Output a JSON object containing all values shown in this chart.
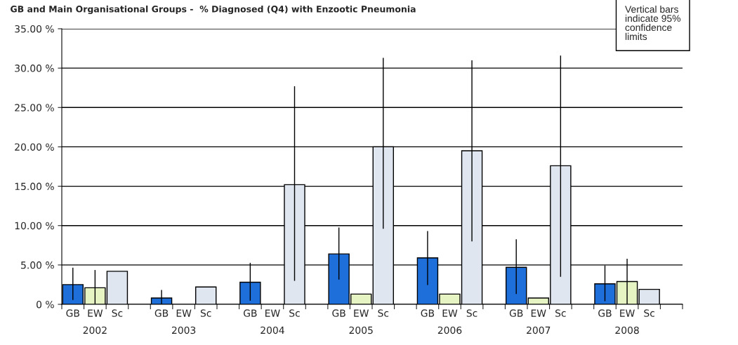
{
  "chart_data": {
    "type": "bar",
    "title": "GB and Main Organisational Groups -  % Diagnosed (Q4) with Enzootic Pneumonia",
    "categories": [
      "2002",
      "2003",
      "2004",
      "2005",
      "2006",
      "2007",
      "2008"
    ],
    "series": [
      {
        "name": "GB",
        "color": "#1e6fd9",
        "values": [
          2.5,
          0.8,
          2.8,
          6.4,
          5.9,
          4.7,
          2.6
        ],
        "errors": [
          [
            0.55,
            4.66
          ],
          [
            0,
            1.83
          ],
          [
            0.46,
            5.27
          ],
          [
            3.14,
            9.76
          ],
          [
            2.44,
            9.3
          ],
          [
            1.31,
            8.26
          ],
          [
            0.4,
            4.94
          ]
        ]
      },
      {
        "name": "EW",
        "color": "#e6f4c4",
        "values": [
          2.1,
          null,
          null,
          1.3,
          1.3,
          0.8,
          2.9
        ],
        "errors": [
          [
            0,
            4.36
          ],
          null,
          null,
          null,
          null,
          null,
          [
            0,
            5.79
          ]
        ]
      },
      {
        "name": "Sc",
        "color": "#dfe6ef",
        "values": [
          4.2,
          2.2,
          15.2,
          20.0,
          19.5,
          17.6,
          1.9
        ],
        "errors": [
          null,
          null,
          [
            2.99,
            27.7
          ],
          [
            9.6,
            31.3
          ],
          [
            8.0,
            31.0
          ],
          [
            3.5,
            31.6
          ],
          null
        ]
      }
    ],
    "ylim": [
      0,
      35
    ],
    "yticks": [
      {
        "value": 0,
        "label": "0 %"
      },
      {
        "value": 5,
        "label": "5.00 %"
      },
      {
        "value": 10,
        "label": "10.00 %"
      },
      {
        "value": 15,
        "label": "15.00 %"
      },
      {
        "value": 20,
        "label": "20.00 %"
      },
      {
        "value": 25,
        "label": "25.00 %"
      },
      {
        "value": 30,
        "label": "30.00 %"
      },
      {
        "value": 35,
        "label": "35.00 %"
      }
    ],
    "grid": "y",
    "annotations": [
      "Vertical bars\nindicate 95%\nconfidence\nlimits"
    ]
  }
}
